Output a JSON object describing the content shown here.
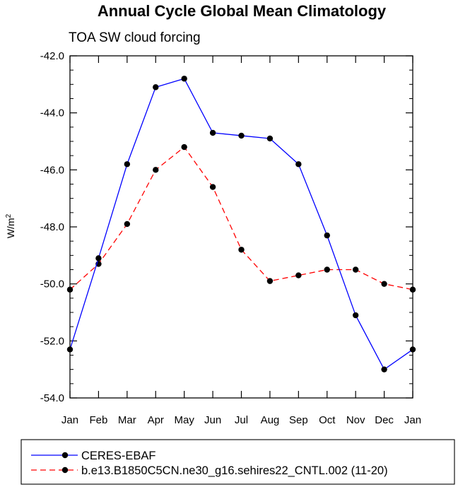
{
  "chart_data": {
    "type": "line",
    "title": "Annual Cycle Global Mean Climatology",
    "subtitle": "TOA SW cloud forcing",
    "ylabel": "W/m",
    "ylabel_sup": "2",
    "xlabel": "",
    "categories": [
      "Jan",
      "Feb",
      "Mar",
      "Apr",
      "May",
      "Jun",
      "Jul",
      "Aug",
      "Sep",
      "Oct",
      "Nov",
      "Dec",
      "Jan"
    ],
    "ylim": [
      -54.0,
      -42.0
    ],
    "yticks": [
      "-42.0",
      "-44.0",
      "-46.0",
      "-48.0",
      "-50.0",
      "-52.0",
      "-54.0"
    ],
    "ytick_values": [
      -42,
      -44,
      -46,
      -48,
      -50,
      -52,
      -54
    ],
    "legend_position": "bottom",
    "series": [
      {
        "name": "CERES-EBAF",
        "color": "#0000ff",
        "dash": "solid",
        "values": [
          -52.3,
          -49.1,
          -45.8,
          -43.1,
          -42.8,
          -44.7,
          -44.8,
          -44.9,
          -45.8,
          -48.3,
          -51.1,
          -53.0,
          -52.3
        ]
      },
      {
        "name": "b.e13.B1850C5CN.ne30_g16.sehires22_CNTL.002 (11-20)",
        "color": "#ff0000",
        "dash": "dashed",
        "values": [
          -50.2,
          -49.3,
          -47.9,
          -46.0,
          -45.2,
          -46.6,
          -48.8,
          -49.9,
          -49.7,
          -49.5,
          -49.5,
          -50.0,
          -50.2
        ]
      }
    ]
  }
}
